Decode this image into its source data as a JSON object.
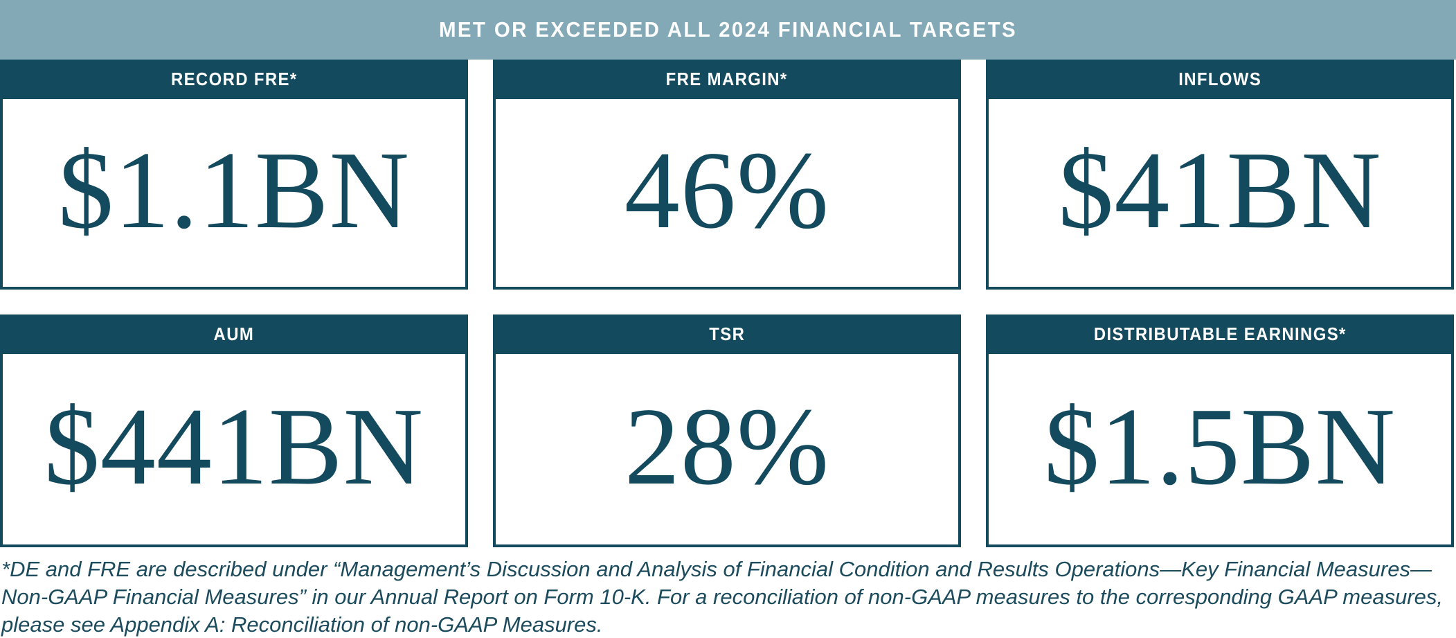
{
  "banner": {
    "title": "MET OR EXCEEDED ALL 2024 FINANCIAL TARGETS"
  },
  "cards": [
    {
      "label": "RECORD FRE*",
      "value": "$1.1BN"
    },
    {
      "label": "FRE MARGIN*",
      "value": "46%"
    },
    {
      "label": "INFLOWS",
      "value": "$41BN"
    },
    {
      "label": "AUM",
      "value": "$441BN"
    },
    {
      "label": "TSR",
      "value": "28%"
    },
    {
      "label": "DISTRIBUTABLE EARNINGS*",
      "value": "$1.5BN"
    }
  ],
  "footnote": "*DE and FRE are described under “Management’s Discussion and Analysis of Financial Condition and Results Operations—Key Financial Measures—Non-GAAP Financial Measures” in our Annual Report on Form 10-K. For a reconciliation of non-GAAP measures to the corresponding GAAP measures, please see Appendix A: Reconciliation of non-GAAP Measures.",
  "colors": {
    "band": "#83a9b7",
    "dark_teal": "#134a5e",
    "footnote_text": "#1b4b5c"
  }
}
